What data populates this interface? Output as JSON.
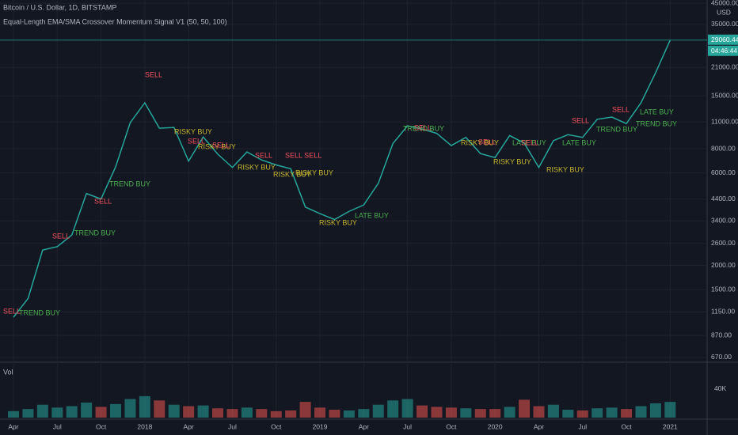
{
  "title": "Bitcoin / U.S. Dollar, 1D, BITSTAMP",
  "subtitle": "Equal-Length EMA/SMA Crossover Momentum Signal V1 (50, 50, 100)",
  "countdown": "04:46:44",
  "chart_data": [
    {
      "type": "line",
      "y_unit": "USD",
      "log_scale": true,
      "grid": true,
      "color": "#26a69a",
      "categories": [
        "Apr",
        null,
        null,
        "Jul",
        null,
        null,
        "Oct",
        null,
        null,
        "2018",
        null,
        null,
        "Apr",
        null,
        null,
        "Jul",
        null,
        null,
        "Oct",
        null,
        null,
        "2019",
        null,
        null,
        "Apr",
        null,
        null,
        "Jul",
        null,
        null,
        "Oct",
        null,
        null,
        "2020",
        null,
        null,
        "Apr",
        null,
        null,
        "Jul",
        null,
        null,
        "Oct",
        null,
        null,
        "2021"
      ],
      "values": [
        1080,
        1350,
        2400,
        2500,
        2870,
        4700,
        4400,
        6450,
        10900,
        13800,
        10200,
        10300,
        6900,
        9200,
        7500,
        6400,
        7700,
        7000,
        6600,
        6300,
        4000,
        3700,
        3450,
        3800,
        4100,
        5300,
        8500,
        10500,
        10100,
        9600,
        8300,
        9150,
        7550,
        7200,
        9350,
        8550,
        6400,
        8800,
        9450,
        9150,
        11350,
        11650,
        10780,
        13800,
        19700,
        29060.44
      ],
      "last_price": {
        "value": 29060.44,
        "label": "29060.44"
      },
      "ylim": [
        633,
        46800
      ],
      "yticks": [
        {
          "value": 670,
          "label": "670.00"
        },
        {
          "value": 870,
          "label": "870.00"
        },
        {
          "value": 1150,
          "label": "1150.00"
        },
        {
          "value": 1500,
          "label": "1500.00"
        },
        {
          "value": 2000,
          "label": "2000.00"
        },
        {
          "value": 2600,
          "label": "2600.00"
        },
        {
          "value": 3400,
          "label": "3400.00"
        },
        {
          "value": 4400,
          "label": "4400.00"
        },
        {
          "value": 6000,
          "label": "6000.00"
        },
        {
          "value": 8000,
          "label": "8000.00"
        },
        {
          "value": 11000,
          "label": "11000.00"
        },
        {
          "value": 15000,
          "label": "15000.00"
        },
        {
          "value": 21000,
          "label": "21000.00"
        },
        {
          "value": 35000,
          "label": "35000.00"
        },
        {
          "value": 45000,
          "label": "45000.00"
        }
      ],
      "annotations": [
        {
          "text": "SELL",
          "color": "#f7525f"
        },
        {
          "text": "SELL",
          "color": "#f7525f"
        },
        {
          "text": "TREND BUY",
          "color": "#4caf50"
        },
        {
          "text": "TREND BUY",
          "color": "#4caf50"
        },
        {
          "text": "SELL",
          "color": "#f7525f"
        },
        {
          "text": "SELL",
          "color": "#f7525f"
        },
        {
          "text": "TREND BUY",
          "color": "#4caf50"
        },
        {
          "text": "RISKY BUY",
          "color": "#c8b82f"
        },
        {
          "text": "SELL",
          "color": "#f7525f"
        },
        {
          "text": "RISKY BUY",
          "color": "#c8b82f"
        },
        {
          "text": "SELL",
          "color": "#f7525f"
        },
        {
          "text": "RISKY BUY",
          "color": "#c8b82f"
        },
        {
          "text": "SELL",
          "color": "#f7525f"
        },
        {
          "text": "SELL SELL",
          "color": "#f7525f"
        },
        {
          "text": "RISKY BUY",
          "color": "#c8b82f"
        },
        {
          "text": "RISKY BUY",
          "color": "#c8b82f"
        },
        {
          "text": "RISKY BUY",
          "color": "#c8b82f"
        },
        {
          "text": "LATE BUY",
          "color": "#4caf50"
        },
        {
          "text": "TREND BUY",
          "color": "#4caf50"
        },
        {
          "text": "SELL",
          "color": "#f7525f"
        },
        {
          "text": "RISKY BUY",
          "color": "#c8b82f"
        },
        {
          "text": "SELL",
          "color": "#f7525f"
        },
        {
          "text": "RISKY BUY",
          "color": "#c8b82f"
        },
        {
          "text": "LATE BUY",
          "color": "#4caf50"
        },
        {
          "text": "SELL",
          "color": "#f7525f"
        },
        {
          "text": "RISKY BUY",
          "color": "#c8b82f"
        },
        {
          "text": "LATE BUY",
          "color": "#4caf50"
        },
        {
          "text": "SELL",
          "color": "#f7525f"
        },
        {
          "text": "TREND BUY",
          "color": "#4caf50"
        },
        {
          "text": "SELL",
          "color": "#f7525f"
        },
        {
          "text": "LATE BUY",
          "color": "#4caf50"
        },
        {
          "text": "TREND BUY",
          "color": "#4caf50"
        }
      ]
    },
    {
      "type": "bar",
      "title": "Vol",
      "up_color": "#26a69a",
      "down_color": "#ef5350",
      "values": [
        9000,
        12000,
        18000,
        14000,
        16000,
        21000,
        15000,
        19000,
        26000,
        30000,
        24000,
        18000,
        16000,
        17000,
        13000,
        12000,
        14000,
        12000,
        9000,
        10000,
        22000,
        14000,
        11000,
        10000,
        12000,
        18000,
        24000,
        26000,
        17000,
        15000,
        14000,
        13000,
        12000,
        12000,
        15000,
        25000,
        16000,
        18000,
        11000,
        10000,
        13000,
        14000,
        12000,
        16000,
        20000,
        22000
      ],
      "ylim": [
        0,
        73000
      ],
      "yticks": [
        {
          "value": 40000,
          "label": "40K"
        }
      ]
    }
  ]
}
